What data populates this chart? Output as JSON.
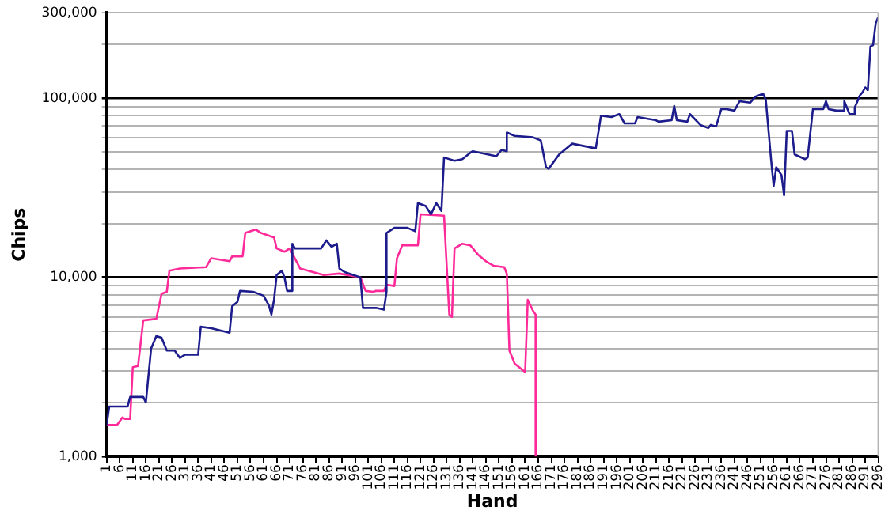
{
  "chart_data": {
    "type": "line",
    "xlabel": "Hand",
    "ylabel": "Chips",
    "log": "y",
    "grid": "y",
    "legend": false,
    "marker": "none",
    "line_style": "solid",
    "xlim": [
      1,
      296
    ],
    "xticks": [
      1,
      6,
      11,
      16,
      21,
      26,
      31,
      36,
      41,
      46,
      51,
      56,
      61,
      66,
      71,
      76,
      81,
      86,
      91,
      96,
      101,
      106,
      111,
      116,
      121,
      126,
      131,
      136,
      141,
      146,
      151,
      156,
      161,
      166,
      171,
      176,
      181,
      186,
      191,
      196,
      201,
      206,
      211,
      216,
      221,
      226,
      231,
      236,
      241,
      246,
      251,
      256,
      261,
      266,
      271,
      276,
      281,
      286,
      291,
      296
    ],
    "ylim": [
      1000,
      300000
    ],
    "yticks": [
      {
        "value": 1000,
        "label": "1,000"
      },
      {
        "value": 2000,
        "label": null
      },
      {
        "value": 3000,
        "label": null
      },
      {
        "value": 4000,
        "label": null
      },
      {
        "value": 5000,
        "label": null
      },
      {
        "value": 6000,
        "label": null
      },
      {
        "value": 7000,
        "label": null
      },
      {
        "value": 8000,
        "label": null
      },
      {
        "value": 9000,
        "label": null
      },
      {
        "value": 10000,
        "label": "10,000"
      },
      {
        "value": 20000,
        "label": null
      },
      {
        "value": 30000,
        "label": null
      },
      {
        "value": 40000,
        "label": null
      },
      {
        "value": 50000,
        "label": null
      },
      {
        "value": 60000,
        "label": null
      },
      {
        "value": 70000,
        "label": null
      },
      {
        "value": 80000,
        "label": null
      },
      {
        "value": 90000,
        "label": null
      },
      {
        "value": 100000,
        "label": "100,000"
      },
      {
        "value": 200000,
        "label": null
      },
      {
        "value": 300000,
        "label": "300,000"
      }
    ],
    "series": [
      {
        "color": "#1c1c8c",
        "x": [
          1,
          2,
          9,
          10,
          15,
          16,
          18,
          20,
          22,
          24,
          27,
          29,
          31,
          36,
          37,
          41,
          48,
          49,
          51,
          52,
          57,
          61,
          63,
          64,
          65,
          66,
          68,
          69,
          70,
          72,
          72,
          73,
          83,
          85,
          87,
          89,
          90,
          92,
          98,
          99,
          104,
          107,
          108,
          108,
          111,
          116,
          119,
          120,
          123,
          125,
          127,
          129,
          130,
          134,
          137,
          140,
          141,
          150,
          152,
          154,
          154,
          157,
          164,
          167,
          169,
          170,
          174,
          179,
          188,
          190,
          194,
          197,
          199,
          203,
          204,
          211,
          212,
          217,
          218,
          219,
          223,
          224,
          228,
          231,
          232,
          234,
          236,
          238,
          241,
          243,
          247,
          249,
          252,
          253,
          255,
          256,
          257,
          259,
          260,
          261,
          263,
          264,
          268,
          269,
          271,
          275,
          276,
          277,
          280,
          283,
          283,
          285,
          287,
          287,
          289,
          290,
          291,
          292,
          293,
          294,
          295,
          296
        ],
        "values": [
          1500,
          1900,
          1900,
          2150,
          2150,
          2000,
          4000,
          4700,
          4600,
          3900,
          3900,
          3550,
          3700,
          3700,
          5300,
          5200,
          4900,
          6900,
          7300,
          8400,
          8300,
          7900,
          7000,
          6200,
          7500,
          10300,
          10900,
          10000,
          8400,
          8400,
          15400,
          14500,
          14500,
          16100,
          14800,
          15400,
          11200,
          10700,
          10000,
          6750,
          6750,
          6600,
          8300,
          17700,
          18900,
          18900,
          18100,
          26000,
          25000,
          22500,
          26000,
          23500,
          46700,
          44800,
          45700,
          49600,
          50600,
          47500,
          51500,
          50600,
          64400,
          61700,
          60500,
          58100,
          41200,
          40400,
          48600,
          55800,
          52500,
          80000,
          78500,
          81600,
          72400,
          72400,
          78500,
          75400,
          74000,
          75400,
          90600,
          75400,
          74000,
          81600,
          71000,
          68200,
          71000,
          69600,
          87000,
          87000,
          85300,
          96300,
          94500,
          102000,
          106000,
          98000,
          45700,
          32400,
          41200,
          37200,
          28700,
          65700,
          65700,
          48600,
          45700,
          46700,
          87000,
          87000,
          96300,
          87000,
          85300,
          85300,
          96300,
          81600,
          81600,
          88800,
          104000,
          108000,
          115000,
          111000,
          195000,
          198000,
          262000,
          284000
        ]
      },
      {
        "color": "#ff2a9a",
        "x": [
          1,
          5,
          7,
          8,
          10,
          11,
          13,
          15,
          20,
          22,
          24,
          25,
          29,
          39,
          41,
          48,
          49,
          53,
          54,
          58,
          60,
          65,
          66,
          69,
          71,
          75,
          84,
          90,
          98,
          100,
          103,
          104,
          107,
          108,
          111,
          112,
          114,
          120,
          121,
          130,
          132,
          133,
          134,
          137,
          140,
          143,
          146,
          149,
          153,
          154,
          155,
          157,
          161,
          162,
          164,
          165,
          165
        ],
        "values": [
          1500,
          1500,
          1650,
          1620,
          1620,
          3150,
          3200,
          5750,
          5870,
          8100,
          8300,
          10900,
          11200,
          11400,
          12800,
          12300,
          13100,
          13100,
          17700,
          18500,
          17700,
          16700,
          14500,
          13900,
          14500,
          11200,
          10300,
          10500,
          10000,
          8400,
          8300,
          8400,
          8400,
          9100,
          8950,
          12800,
          15100,
          15100,
          22500,
          22100,
          6200,
          6000,
          14500,
          15400,
          15100,
          13400,
          12300,
          11600,
          11400,
          10500,
          3900,
          3300,
          2960,
          7500,
          6500,
          6200,
          1000
        ]
      }
    ]
  }
}
